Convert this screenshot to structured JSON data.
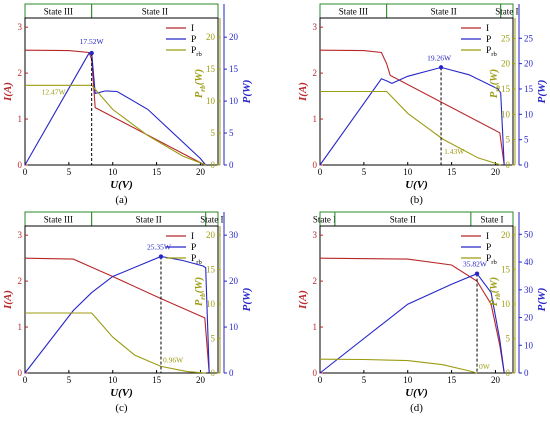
{
  "colors": {
    "I": "#b8282b",
    "P": "#2626c8",
    "Prb": "#9c9c12",
    "strip": "#2a8a2a",
    "axis": "#000000"
  },
  "chart_data": [
    {
      "type": "line",
      "panel_label": "(a)",
      "xlabel": "U(V)",
      "ylabel_I": "I(A)",
      "ylabel_Prb": "P_rb(W)",
      "ylabel_P": "P(W)",
      "xlim": [
        0,
        22
      ],
      "ylim_I": [
        0,
        3.2
      ],
      "ylim_Prb": [
        0,
        23
      ],
      "ylim_P": [
        0,
        23
      ],
      "xticks": [
        0,
        5,
        10,
        15,
        20
      ],
      "yticks_I": [
        0,
        1,
        2,
        3
      ],
      "yticks_Prb": [
        0,
        5,
        10,
        15,
        20
      ],
      "yticks_P": [
        0,
        5,
        10,
        15,
        20
      ],
      "states": [
        {
          "label": "State III",
          "from": 0,
          "to": 7.6
        },
        {
          "label": "State II",
          "from": 7.6,
          "to": 22
        }
      ],
      "legend": [
        "I",
        "P",
        "P_rb"
      ],
      "series": [
        {
          "name": "I",
          "axis": "I",
          "x": [
            0,
            5,
            7.3,
            7.6,
            8.0,
            20.0,
            20.6
          ],
          "y": [
            2.5,
            2.49,
            2.45,
            2.3,
            1.25,
            0.05,
            0
          ]
        },
        {
          "name": "P",
          "axis": "P",
          "x": [
            0,
            7.3,
            7.6,
            8.0,
            9.2,
            10.5,
            14,
            20,
            20.6
          ],
          "y": [
            0,
            17.5,
            17.52,
            11.2,
            11.6,
            11.5,
            8.7,
            1.0,
            0
          ]
        },
        {
          "name": "P_rb",
          "axis": "Prb",
          "x": [
            0,
            7.6,
            10,
            14,
            18,
            20.6
          ],
          "y": [
            12.47,
            12.47,
            8.7,
            4.6,
            1.4,
            0
          ]
        }
      ],
      "annotations": [
        {
          "text": "17.52W",
          "x": 7.6,
          "y": 17.52,
          "axis": "P",
          "dx": -12,
          "dy": -9,
          "color": "P"
        },
        {
          "text": "12.47W",
          "x": 7.6,
          "y": 12.47,
          "axis": "Prb",
          "dx": -50,
          "dy": 9,
          "color": "Prb"
        }
      ],
      "dashed_x": 7.6,
      "dashed_y": 17.52,
      "dashed_axis": "P"
    },
    {
      "type": "line",
      "panel_label": "(b)",
      "xlabel": "U(V)",
      "ylabel_I": "I(A)",
      "ylabel_Prb": "P_rb(W)",
      "ylabel_P": "P(W)",
      "xlim": [
        0,
        22
      ],
      "ylim_I": [
        0,
        3.2
      ],
      "ylim_Prb": [
        0,
        29
      ],
      "ylim_P": [
        0,
        29
      ],
      "xticks": [
        0,
        5,
        10,
        15,
        20
      ],
      "yticks_I": [
        0,
        1,
        2,
        3
      ],
      "yticks_Prb": [
        0,
        5,
        10,
        15,
        20,
        25
      ],
      "yticks_P": [
        0,
        5,
        10,
        15,
        20,
        25
      ],
      "states": [
        {
          "label": "State III",
          "from": 0,
          "to": 7.6
        },
        {
          "label": "State II",
          "from": 7.6,
          "to": 20.6
        },
        {
          "label": "State I",
          "from": 20.6,
          "to": 22
        }
      ],
      "legend": [
        "I",
        "P",
        "P_rb"
      ],
      "series": [
        {
          "name": "I",
          "axis": "I",
          "x": [
            0,
            5,
            7.0,
            7.6,
            8.0,
            20.5,
            21.0
          ],
          "y": [
            2.5,
            2.49,
            2.45,
            2.2,
            1.95,
            0.7,
            0
          ]
        },
        {
          "name": "P",
          "axis": "P",
          "x": [
            0,
            7.0,
            7.6,
            8.2,
            10,
            13.8,
            17,
            20.3,
            20.6,
            21.0
          ],
          "y": [
            0,
            17.0,
            16.6,
            16.1,
            17.5,
            19.26,
            17.8,
            15.0,
            14.2,
            0
          ]
        },
        {
          "name": "P_rb",
          "axis": "Prb",
          "x": [
            0,
            7.6,
            10,
            14,
            18,
            20.6
          ],
          "y": [
            14.5,
            14.5,
            10.2,
            5.1,
            1.43,
            0
          ]
        }
      ],
      "annotations": [
        {
          "text": "19.26W",
          "x": 13.8,
          "y": 19.26,
          "axis": "P",
          "dx": -14,
          "dy": -7,
          "color": "P"
        },
        {
          "text": "1.43W",
          "x": 13.8,
          "y": 1.43,
          "axis": "Prb",
          "dx": 3,
          "dy": -4,
          "color": "Prb"
        }
      ],
      "dashed_x": 13.8,
      "dashed_y": 19.26,
      "dashed_axis": "P"
    },
    {
      "type": "line",
      "panel_label": "(c)",
      "xlabel": "U(V)",
      "ylabel_I": "I(A)",
      "ylabel_Prb": "P_rb(W)",
      "ylabel_P": "P(W)",
      "xlim": [
        0,
        22
      ],
      "ylim_I": [
        0,
        3.2
      ],
      "ylim_Prb": [
        0,
        21.3
      ],
      "ylim_P": [
        0,
        32
      ],
      "xticks": [
        0,
        5,
        10,
        15,
        20
      ],
      "yticks_I": [
        0,
        1,
        2,
        3
      ],
      "yticks_Prb": [
        0,
        5,
        10,
        15,
        20
      ],
      "yticks_P": [
        0,
        10,
        20,
        30
      ],
      "states": [
        {
          "label": "State III",
          "from": 0,
          "to": 7.6
        },
        {
          "label": "State II",
          "from": 7.6,
          "to": 20.6
        },
        {
          "label": "State I",
          "from": 20.6,
          "to": 22
        }
      ],
      "legend": [
        "I",
        "P",
        "P_rb"
      ],
      "series": [
        {
          "name": "I",
          "axis": "I",
          "x": [
            0,
            5.5,
            7.6,
            10,
            15.5,
            20.5,
            21.0
          ],
          "y": [
            2.5,
            2.48,
            2.3,
            2.1,
            1.62,
            1.2,
            0
          ]
        },
        {
          "name": "P",
          "axis": "P",
          "x": [
            0,
            5.5,
            7.6,
            10,
            15.5,
            18,
            20.3,
            20.6,
            21.0
          ],
          "y": [
            0,
            13.6,
            17.5,
            21.0,
            25.35,
            24.5,
            23.3,
            22.9,
            0
          ]
        },
        {
          "name": "P_rb",
          "axis": "Prb",
          "x": [
            0,
            7.6,
            10,
            12.5,
            15.5,
            18.5,
            20.6
          ],
          "y": [
            8.7,
            8.7,
            5.2,
            2.6,
            0.96,
            0.2,
            0
          ]
        }
      ],
      "annotations": [
        {
          "text": "25.35W",
          "x": 15.5,
          "y": 25.35,
          "axis": "P",
          "dx": -14,
          "dy": -7,
          "color": "P"
        },
        {
          "text": "0.96W",
          "x": 15.5,
          "y": 0.96,
          "axis": "Prb",
          "dx": 2,
          "dy": -4,
          "color": "Prb"
        }
      ],
      "dashed_x": 15.5,
      "dashed_y": 25.35,
      "dashed_axis": "P"
    },
    {
      "type": "line",
      "panel_label": "(d)",
      "xlabel": "U(V)",
      "ylabel_I": "I(A)",
      "ylabel_Prb": "P_rb(W)",
      "ylabel_P": "P(W)",
      "xlim": [
        0,
        22
      ],
      "ylim_I": [
        0,
        3.2
      ],
      "ylim_Prb": [
        0,
        21.3
      ],
      "ylim_P": [
        0,
        53
      ],
      "xticks": [
        0,
        5,
        10,
        15,
        20
      ],
      "yticks_I": [
        0,
        1,
        2,
        3
      ],
      "yticks_Prb": [
        0,
        5,
        10,
        15,
        20
      ],
      "yticks_P": [
        0,
        10,
        20,
        30,
        40,
        50
      ],
      "states": [
        {
          "label": "State III",
          "from": 0,
          "to": 1.7
        },
        {
          "label": "State II",
          "from": 1.7,
          "to": 17.2
        },
        {
          "label": "State I",
          "from": 17.2,
          "to": 22
        }
      ],
      "legend": [
        "I",
        "P",
        "P_rb"
      ],
      "series": [
        {
          "name": "I",
          "axis": "I",
          "x": [
            0,
            10,
            15,
            17.9,
            19.5,
            20.5,
            21.0
          ],
          "y": [
            2.5,
            2.48,
            2.35,
            2.0,
            1.5,
            0.6,
            0
          ]
        },
        {
          "name": "P",
          "axis": "P",
          "x": [
            0,
            10,
            15,
            17.9,
            19.5,
            20.5,
            21.0
          ],
          "y": [
            0,
            24.8,
            32.0,
            35.82,
            29,
            12,
            0
          ]
        },
        {
          "name": "P_rb",
          "axis": "Prb",
          "x": [
            0,
            5,
            10,
            14,
            17,
            17.9
          ],
          "y": [
            2.0,
            1.95,
            1.8,
            1.2,
            0.3,
            0
          ]
        }
      ],
      "annotations": [
        {
          "text": "35.82W",
          "x": 17.9,
          "y": 35.82,
          "axis": "P",
          "dx": -14,
          "dy": -7,
          "color": "P"
        },
        {
          "text": "0W",
          "x": 17.9,
          "y": 0,
          "axis": "Prb",
          "dx": 2,
          "dy": -4,
          "color": "Prb"
        }
      ],
      "dashed_x": 17.9,
      "dashed_y": 35.82,
      "dashed_axis": "P"
    }
  ]
}
